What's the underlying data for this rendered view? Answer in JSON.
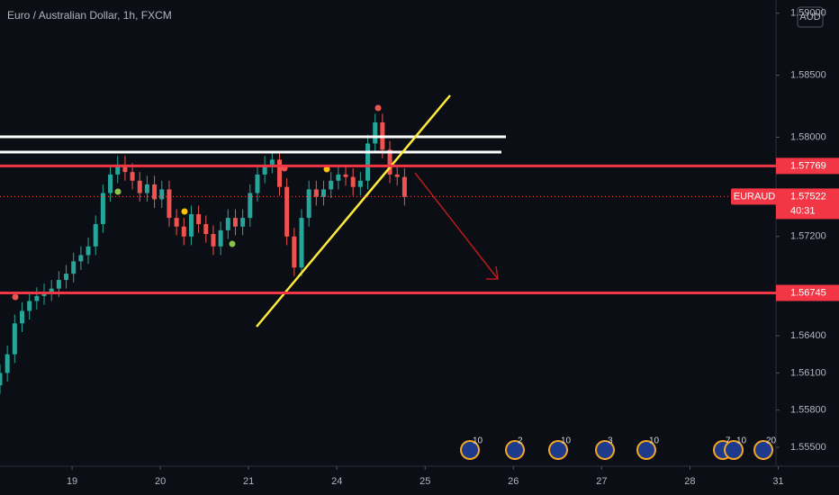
{
  "chart_data": {
    "type": "candlestick",
    "title": "Euro / Australian Dollar, 1h, FXCM",
    "currency": "AUD",
    "symbol": "EURAUD",
    "countdown": "40:31",
    "last_price": 1.57522,
    "price_lines": [
      1.57769,
      1.56745
    ],
    "up_color": "#26a69a",
    "down_color": "#ef5350",
    "x": [
      0,
      1,
      2,
      3,
      4,
      5,
      6,
      7,
      8,
      9,
      10,
      11,
      12,
      13,
      14,
      15,
      16,
      17,
      18,
      19,
      20,
      21,
      22,
      23,
      24,
      25,
      26,
      27,
      28,
      29,
      30,
      31,
      32,
      33,
      34,
      35,
      36,
      37,
      38,
      39,
      40,
      41,
      42,
      43,
      44,
      45,
      46,
      47,
      48,
      49,
      50,
      51,
      52,
      53,
      54,
      55
    ],
    "open": [
      1.56,
      1.561,
      1.5625,
      1.565,
      1.566,
      1.5668,
      1.5672,
      1.5675,
      1.5678,
      1.5685,
      1.569,
      1.57,
      1.5705,
      1.5712,
      1.573,
      1.5755,
      1.577,
      1.5778,
      1.5772,
      1.5765,
      1.5755,
      1.5762,
      1.575,
      1.5758,
      1.5735,
      1.5728,
      1.572,
      1.5738,
      1.573,
      1.5722,
      1.5712,
      1.5725,
      1.5735,
      1.5728,
      1.5735,
      1.5755,
      1.577,
      1.5778,
      1.5782,
      1.576,
      1.572,
      1.5695,
      1.5735,
      1.5758,
      1.5752,
      1.5758,
      1.5765,
      1.577,
      1.5768,
      1.576,
      1.5765,
      1.5795,
      1.5812,
      1.579,
      1.577,
      1.5768
    ],
    "high": [
      1.5617,
      1.5632,
      1.5657,
      1.5667,
      1.5675,
      1.5679,
      1.5682,
      1.5685,
      1.5692,
      1.5697,
      1.5707,
      1.5712,
      1.5719,
      1.5737,
      1.5762,
      1.5777,
      1.5785,
      1.5785,
      1.5779,
      1.5772,
      1.5769,
      1.5769,
      1.5765,
      1.5765,
      1.5742,
      1.5735,
      1.5745,
      1.5745,
      1.5737,
      1.5729,
      1.5732,
      1.5742,
      1.5742,
      1.5742,
      1.5762,
      1.5777,
      1.5785,
      1.5789,
      1.5789,
      1.5767,
      1.5727,
      1.5742,
      1.5765,
      1.5765,
      1.5765,
      1.5772,
      1.5777,
      1.5777,
      1.5775,
      1.5772,
      1.5802,
      1.5819,
      1.5819,
      1.5797,
      1.5777,
      1.5775
    ],
    "low": [
      1.5593,
      1.5603,
      1.5618,
      1.5643,
      1.5653,
      1.5661,
      1.5665,
      1.5668,
      1.5671,
      1.5678,
      1.5683,
      1.5693,
      1.5698,
      1.5705,
      1.5723,
      1.5748,
      1.5763,
      1.5765,
      1.5758,
      1.5748,
      1.5748,
      1.5743,
      1.5743,
      1.5728,
      1.5721,
      1.5713,
      1.5713,
      1.5723,
      1.5715,
      1.5705,
      1.5705,
      1.5718,
      1.5721,
      1.5721,
      1.5728,
      1.5748,
      1.5763,
      1.5771,
      1.5753,
      1.5713,
      1.5688,
      1.5688,
      1.5728,
      1.5745,
      1.5745,
      1.5751,
      1.5758,
      1.5761,
      1.5753,
      1.5753,
      1.5758,
      1.5788,
      1.5783,
      1.5763,
      1.5761,
      1.5745
    ],
    "close": [
      1.561,
      1.5625,
      1.565,
      1.566,
      1.5668,
      1.5672,
      1.5675,
      1.5678,
      1.5685,
      1.569,
      1.57,
      1.5705,
      1.5712,
      1.573,
      1.5755,
      1.577,
      1.5778,
      1.5772,
      1.5765,
      1.5755,
      1.5762,
      1.575,
      1.5758,
      1.5735,
      1.5728,
      1.572,
      1.5738,
      1.573,
      1.5722,
      1.5712,
      1.5725,
      1.5735,
      1.5728,
      1.5735,
      1.5755,
      1.577,
      1.5778,
      1.5782,
      1.576,
      1.572,
      1.5695,
      1.5735,
      1.5758,
      1.5752,
      1.5758,
      1.5765,
      1.577,
      1.5768,
      1.576,
      1.5765,
      1.5795,
      1.5812,
      1.579,
      1.577,
      1.5768,
      1.5752
    ],
    "xlim": [
      0,
      105.5
    ],
    "xticks": [
      {
        "value": 9.8,
        "label": "19"
      },
      {
        "value": 21.8,
        "label": "20"
      },
      {
        "value": 33.8,
        "label": "21"
      },
      {
        "value": 45.8,
        "label": "24"
      },
      {
        "value": 57.8,
        "label": "25"
      },
      {
        "value": 69.8,
        "label": "26"
      },
      {
        "value": 81.8,
        "label": "27"
      },
      {
        "value": 93.8,
        "label": "28"
      },
      {
        "value": 105.8,
        "label": "31"
      }
    ],
    "ylim": [
      1.55348,
      1.59107
    ],
    "yticks": [
      {
        "value": 1.555,
        "label": "1.55500"
      },
      {
        "value": 1.558,
        "label": "1.55800"
      },
      {
        "value": 1.561,
        "label": "1.56100"
      },
      {
        "value": 1.564,
        "label": "1.56400"
      },
      {
        "value": 1.572,
        "label": "1.57200"
      },
      {
        "value": 1.58,
        "label": "1.58000"
      },
      {
        "value": 1.585,
        "label": "1.58500"
      },
      {
        "value": 1.59,
        "label": "1.59000"
      }
    ],
    "events": [
      10,
      2,
      10,
      3,
      10,
      7,
      10,
      20
    ]
  }
}
